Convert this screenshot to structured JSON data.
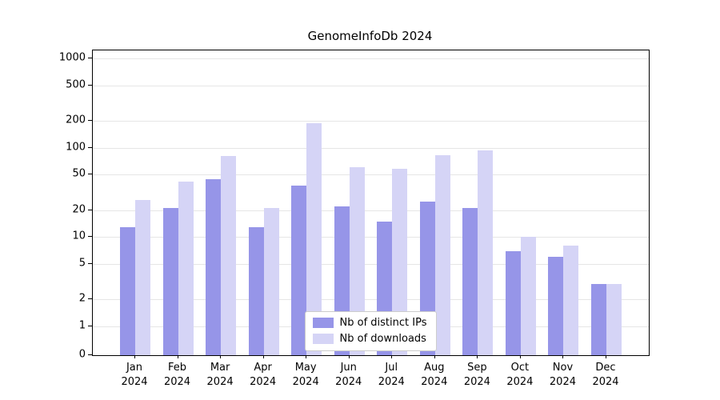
{
  "page": {
    "background": "#ffffff"
  },
  "chart_data": {
    "type": "bar",
    "title": "GenomeInfoDb 2024",
    "scale": "symlog",
    "grid": true,
    "legend_position": "lower center",
    "months": [
      "Jan",
      "Feb",
      "Mar",
      "Apr",
      "May",
      "Jun",
      "Jul",
      "Aug",
      "Sep",
      "Oct",
      "Nov",
      "Dec"
    ],
    "year": "2024",
    "y_ticks": [
      0,
      1,
      2,
      5,
      10,
      20,
      50,
      100,
      200,
      500,
      1000
    ],
    "ylim": [
      0,
      1400
    ],
    "series": [
      {
        "name": "Nb of distinct IPs",
        "color": "#9695e8",
        "values": [
          13,
          21,
          44,
          13,
          38,
          22,
          15,
          25,
          21,
          7,
          6,
          3
        ]
      },
      {
        "name": "Nb of downloads",
        "color": "#d5d4f6",
        "values": [
          26,
          42,
          80,
          21,
          190,
          60,
          58,
          83,
          93,
          10,
          8,
          3
        ]
      }
    ]
  }
}
